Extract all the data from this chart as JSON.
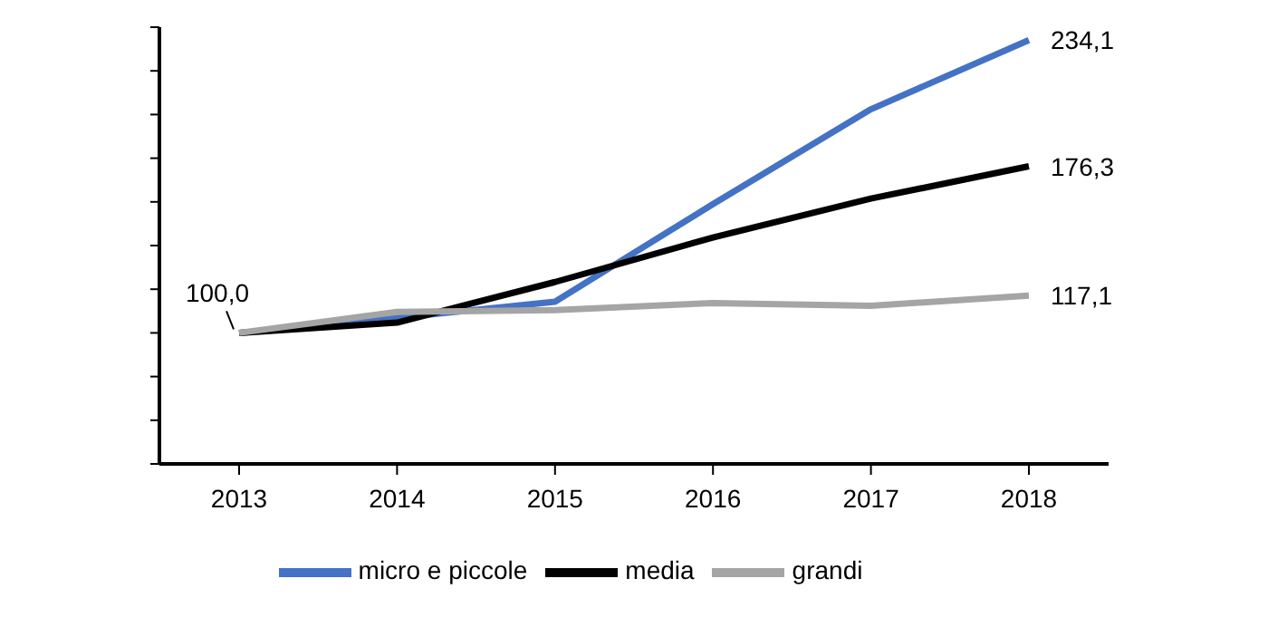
{
  "chart_data": {
    "type": "line",
    "categories": [
      "2013",
      "2014",
      "2015",
      "2016",
      "2017",
      "2018"
    ],
    "series": [
      {
        "name": "micro e piccole",
        "color": "#4472c4",
        "values": [
          100.0,
          106.9,
          114.3,
          159.0,
          202.4,
          234.1
        ],
        "value_labels": [
          "100,0",
          null,
          null,
          null,
          null,
          "234,1"
        ]
      },
      {
        "name": "media",
        "color": "#000000",
        "values": [
          100.0,
          104.7,
          123.3,
          143.7,
          161.5,
          176.3
        ],
        "value_labels": [
          null,
          null,
          null,
          null,
          null,
          "176,3"
        ]
      },
      {
        "name": "grandi",
        "color": "#a5a5a5",
        "values": [
          100.0,
          109.6,
          110.4,
          113.7,
          112.4,
          117.1
        ],
        "value_labels": [
          null,
          null,
          null,
          null,
          null,
          "117,1"
        ]
      }
    ],
    "ylim": [
      40,
      240
    ],
    "yticks": [
      {
        "value": 40,
        "label": null
      },
      {
        "value": 60,
        "label": null
      },
      {
        "value": 80,
        "label": null
      },
      {
        "value": 100,
        "label": null
      },
      {
        "value": 120,
        "label": null
      },
      {
        "value": 140,
        "label": null
      },
      {
        "value": 160,
        "label": null
      },
      {
        "value": 180,
        "label": null
      },
      {
        "value": 200,
        "label": null
      },
      {
        "value": 220,
        "label": null
      },
      {
        "value": 240,
        "label": null
      }
    ],
    "tick_labels": "x",
    "grid": false,
    "legend": "bottom",
    "marker": "none",
    "line_style": "solid"
  }
}
